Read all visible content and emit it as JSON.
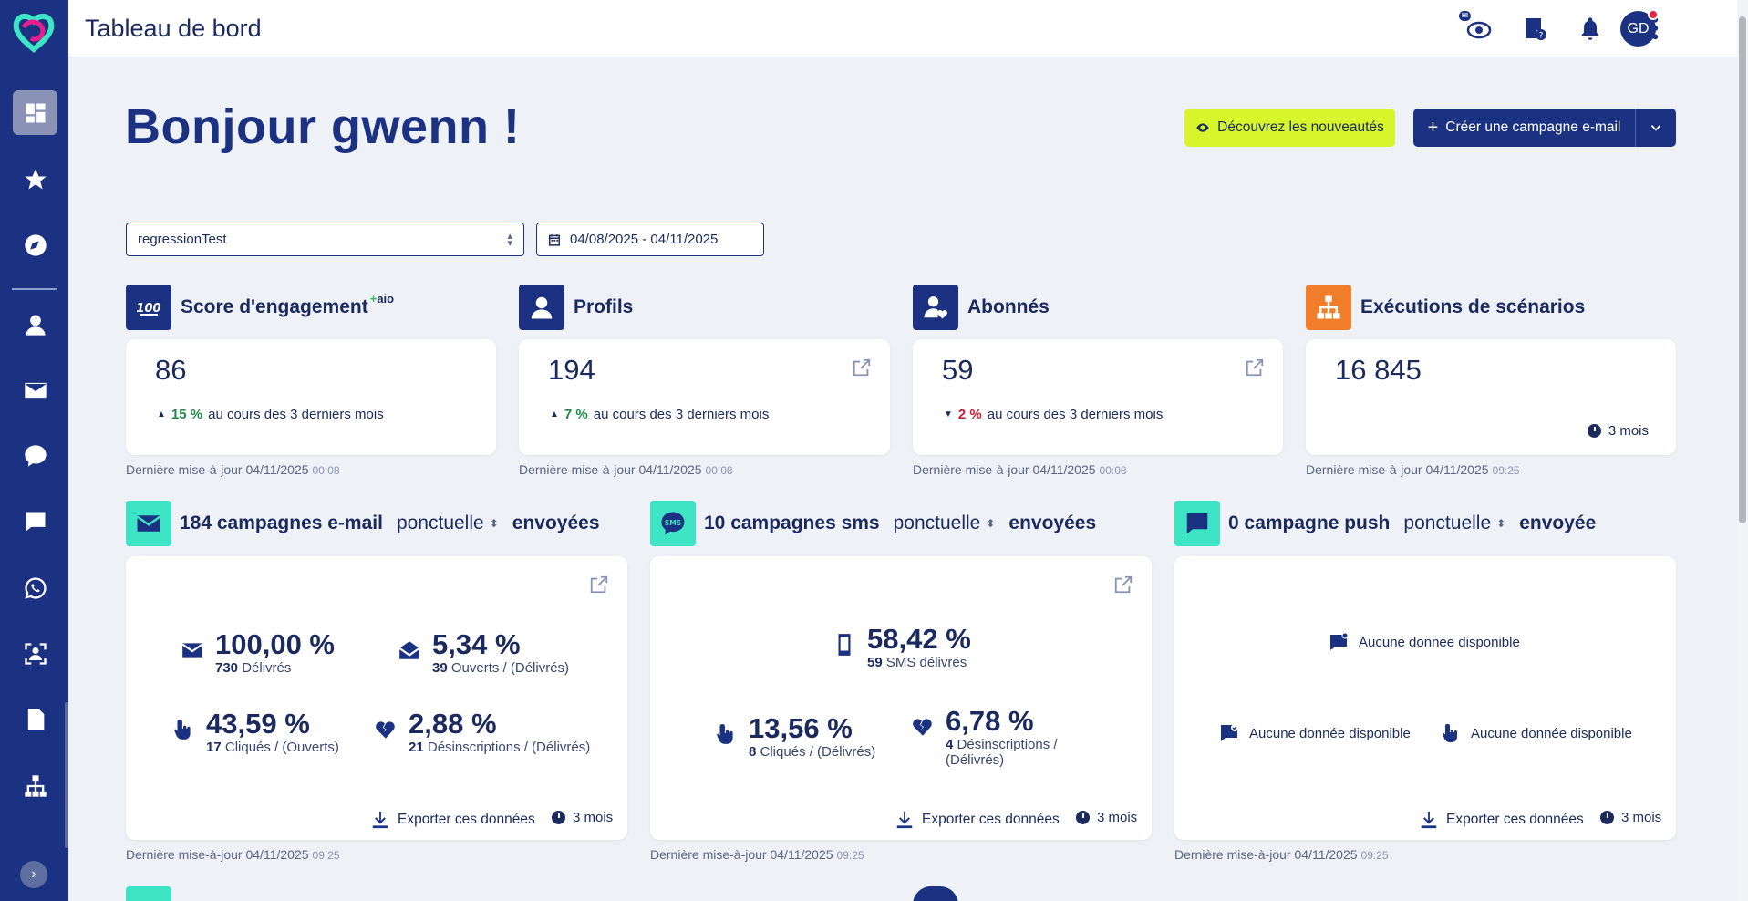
{
  "app": {
    "page_title": "Tableau de bord",
    "avatar_initials": "GD",
    "hi_badge": "HI"
  },
  "header": {
    "greeting": "Bonjour gwenn !",
    "news_button": "Découvrez les nouveautés",
    "create_button": "Créer une campagne e-mail"
  },
  "filters": {
    "list_select": "regressionTest",
    "date_range": "04/08/2025 - 04/11/2025"
  },
  "kpis": [
    {
      "title": "Score d'engagement",
      "badge": "aio",
      "value": "86",
      "trend_pct": "15 %",
      "trend_text": "au cours des 3 derniers mois",
      "direction": "up",
      "updated_date": "Dernière mise-à-jour 04/11/2025",
      "updated_time": "00:08"
    },
    {
      "title": "Profils",
      "value": "194",
      "trend_pct": "7 %",
      "trend_text": "au cours des 3 derniers mois",
      "direction": "up",
      "updated_date": "Dernière mise-à-jour 04/11/2025",
      "updated_time": "00:08"
    },
    {
      "title": "Abonnés",
      "value": "59",
      "trend_pct": "2 %",
      "trend_text": "au cours des 3 derniers mois",
      "direction": "down",
      "updated_date": "Dernière mise-à-jour 04/11/2025",
      "updated_time": "00:08"
    },
    {
      "title": "Exécutions de scénarios",
      "value": "16 845",
      "period": "3 mois",
      "updated_date": "Dernière mise-à-jour 04/11/2025",
      "updated_time": "09:25"
    }
  ],
  "campaigns": {
    "email": {
      "count_label": "184 campagnes e-mail",
      "type": "ponctuelle",
      "status": "envoyées",
      "delivered": {
        "pct": "100,00 %",
        "count": "730",
        "label": "Délivrés"
      },
      "opened": {
        "pct": "5,34 %",
        "count": "39",
        "label": "Ouverts / (Délivrés)"
      },
      "clicked": {
        "pct": "43,59 %",
        "count": "17",
        "label": "Cliqués / (Ouverts)"
      },
      "unsub": {
        "pct": "2,88 %",
        "count": "21",
        "label": "Désinscriptions / (Délivrés)"
      },
      "export": "Exporter ces données",
      "period": "3 mois",
      "updated_date": "Dernière mise-à-jour 04/11/2025",
      "updated_time": "09:25"
    },
    "sms": {
      "count_label": "10 campagnes sms",
      "type": "ponctuelle",
      "status": "envoyées",
      "delivered": {
        "pct": "58,42 %",
        "count": "59",
        "label": "SMS délivrés"
      },
      "clicked": {
        "pct": "13,56 %",
        "count": "8",
        "label": "Cliqués / (Délivrés)"
      },
      "unsub": {
        "pct": "6,78 %",
        "count": "4",
        "label_line1": "Désinscriptions /",
        "label_line2": "(Délivrés)"
      },
      "export": "Exporter ces données",
      "period": "3 mois",
      "updated_date": "Dernière mise-à-jour 04/11/2025",
      "updated_time": "09:25"
    },
    "push": {
      "count_label": "0 campagne push",
      "type": "ponctuelle",
      "status": "envoyée",
      "no_data": "Aucune donnée disponible",
      "export": "Exporter ces données",
      "period": "3 mois",
      "updated_date": "Dernière mise-à-jour 04/11/2025",
      "updated_time": "09:25"
    }
  },
  "colors": {
    "sidebar": "#1b3282",
    "accent_lime": "#d6f52a",
    "teal": "#3ee5c4",
    "orange": "#f07d2a",
    "up": "#1d8a4a",
    "down": "#d11a2a"
  },
  "sidebar_icons": [
    "dashboard-icon",
    "star-icon",
    "compass-icon",
    "profile-icon",
    "email-icon",
    "sms-icon",
    "chat-icon",
    "whatsapp-icon",
    "audience-scan-icon",
    "document-icon",
    "sitemap-icon"
  ]
}
